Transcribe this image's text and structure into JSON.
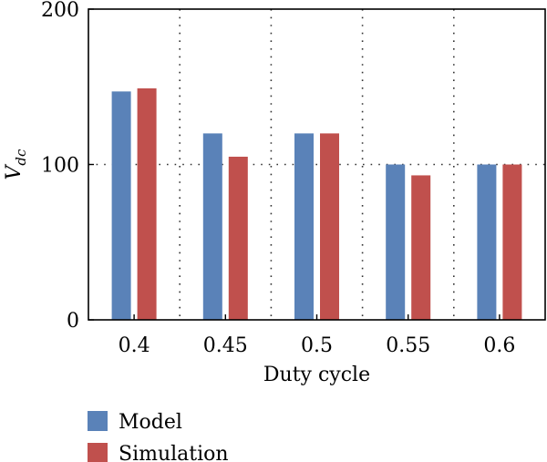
{
  "chart_data": {
    "type": "bar",
    "title": "",
    "xlabel": "Duty cycle",
    "ylabel": {
      "main": "V",
      "sub": "dc"
    },
    "categories": [
      "0.4",
      "0.45",
      "0.5",
      "0.55",
      "0.6"
    ],
    "series": [
      {
        "name": "Model",
        "color": "#5a82b8",
        "values": [
          147,
          120,
          120,
          100,
          100
        ]
      },
      {
        "name": "Simulation",
        "color": "#c0504d",
        "values": [
          149,
          105,
          120,
          93,
          100
        ]
      }
    ],
    "ylim": [
      0,
      200
    ],
    "yticks": [
      "0",
      "100",
      "200"
    ],
    "grid": {
      "style": "dotted",
      "vertical": true,
      "horizontal_at": [
        100
      ]
    },
    "legend": {
      "position": "bottom-left"
    }
  }
}
